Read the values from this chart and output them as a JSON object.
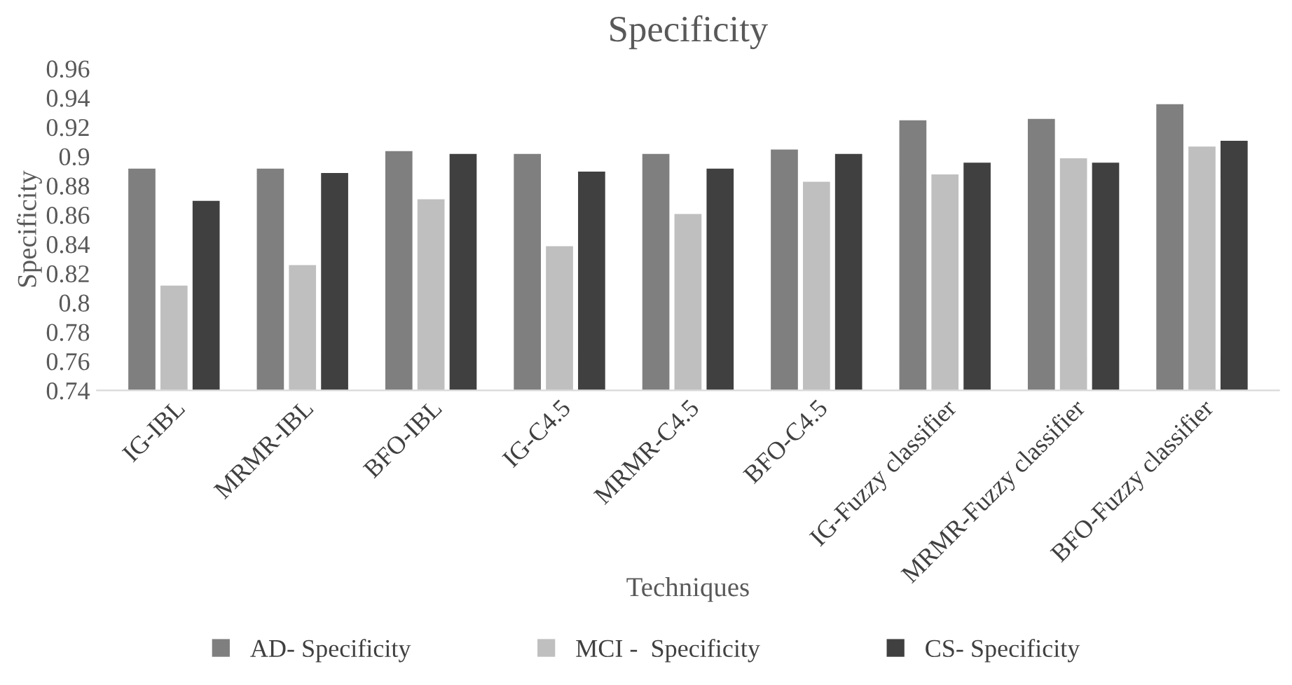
{
  "chart_data": {
    "type": "bar",
    "title": "Specificity",
    "xlabel": "Techniques",
    "ylabel": "Specificity",
    "categories": [
      "IG-IBL",
      "MRMR-IBL",
      "BFO-IBL",
      "IG-C4.5",
      "MRMR-C4.5",
      "BFO-C4.5",
      "IG-Fuzzy classifier",
      "MRMR-Fuzzy classifier",
      "BFO-Fuzzy classifier"
    ],
    "series": [
      {
        "name": "AD- Specificity",
        "color": "#7f7f7f",
        "values": [
          0.892,
          0.892,
          0.904,
          0.902,
          0.902,
          0.905,
          0.925,
          0.926,
          0.936
        ]
      },
      {
        "name": "MCI -  Specificity",
        "color": "#bfbfbf",
        "values": [
          0.812,
          0.826,
          0.871,
          0.839,
          0.861,
          0.883,
          0.888,
          0.899,
          0.907
        ]
      },
      {
        "name": "CS- Specificity",
        "color": "#404040",
        "values": [
          0.87,
          0.889,
          0.902,
          0.89,
          0.892,
          0.902,
          0.896,
          0.896,
          0.911
        ]
      }
    ],
    "ylim": [
      0.74,
      0.96
    ],
    "yticks": [
      0.74,
      0.76,
      0.78,
      0.8,
      0.82,
      0.84,
      0.86,
      0.88,
      0.9,
      0.92,
      0.94,
      0.96
    ],
    "grid": false,
    "legend": "bottom"
  }
}
